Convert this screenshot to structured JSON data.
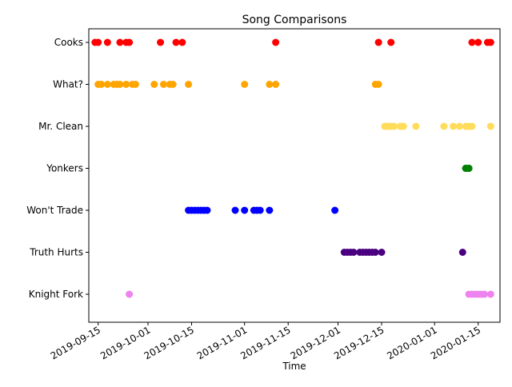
{
  "chart_data": {
    "type": "scatter",
    "title": "Song Comparisons",
    "xlabel": "Time",
    "ylabel": "",
    "x_axis": {
      "type": "date",
      "range": [
        "2019-09-12",
        "2020-01-22"
      ],
      "ticks": [
        "2019-09-15",
        "2019-10-01",
        "2019-10-15",
        "2019-11-01",
        "2019-11-15",
        "2019-12-01",
        "2019-12-15",
        "2020-01-01",
        "2020-01-15"
      ]
    },
    "categories": [
      "Knight Fork",
      "Truth Hurts",
      "Yonkers",
      "Mr. Clean",
      "What?",
      "Cooks",
      "Won't Trade"
    ],
    "y_order_top_to_bottom": [
      "Cooks",
      "What?",
      "Mr. Clean",
      "Yonkers",
      "Won't Trade",
      "Truth Hurts",
      "Knight Fork"
    ],
    "grid": false,
    "legend": "none",
    "series": [
      {
        "category": "Cooks",
        "color": "#ff0000",
        "x": [
          "2019-09-14",
          "2019-09-15",
          "2019-09-18",
          "2019-09-22",
          "2019-09-24",
          "2019-09-25",
          "2019-10-05",
          "2019-10-10",
          "2019-10-12",
          "2019-11-11",
          "2019-12-14",
          "2019-12-18",
          "2020-01-13",
          "2020-01-15",
          "2020-01-18",
          "2020-01-19"
        ]
      },
      {
        "category": "What?",
        "color": "#ffa500",
        "x": [
          "2019-09-15",
          "2019-09-16",
          "2019-09-18",
          "2019-09-20",
          "2019-09-21",
          "2019-09-22",
          "2019-09-24",
          "2019-09-26",
          "2019-09-27",
          "2019-10-03",
          "2019-10-06",
          "2019-10-08",
          "2019-10-09",
          "2019-10-14",
          "2019-11-01",
          "2019-11-09",
          "2019-11-11",
          "2019-12-13",
          "2019-12-14"
        ]
      },
      {
        "category": "Mr. Clean",
        "color": "#ffdc5a",
        "x": [
          "2019-12-16",
          "2019-12-17",
          "2019-12-18",
          "2019-12-19",
          "2019-12-21",
          "2019-12-22",
          "2019-12-26",
          "2020-01-04",
          "2020-01-07",
          "2020-01-09",
          "2020-01-11",
          "2020-01-12",
          "2020-01-13",
          "2020-01-19"
        ]
      },
      {
        "category": "Yonkers",
        "color": "#008000",
        "x": [
          "2020-01-11",
          "2020-01-11",
          "2020-01-12",
          "2020-01-12",
          "2020-01-12"
        ]
      },
      {
        "category": "Won't Trade",
        "color": "#0000ff",
        "x": [
          "2019-10-14",
          "2019-10-15",
          "2019-10-16",
          "2019-10-17",
          "2019-10-18",
          "2019-10-19",
          "2019-10-20",
          "2019-10-29",
          "2019-11-01",
          "2019-11-04",
          "2019-11-05",
          "2019-11-06",
          "2019-11-09",
          "2019-11-30"
        ]
      },
      {
        "category": "Truth Hurts",
        "color": "#4b0082",
        "x": [
          "2019-12-03",
          "2019-12-04",
          "2019-12-05",
          "2019-12-06",
          "2019-12-08",
          "2019-12-09",
          "2019-12-10",
          "2019-12-11",
          "2019-12-12",
          "2019-12-13",
          "2019-12-15",
          "2020-01-10"
        ]
      },
      {
        "category": "Knight Fork",
        "color": "#ee82ee",
        "x": [
          "2019-09-25",
          "2020-01-12",
          "2020-01-13",
          "2020-01-14",
          "2020-01-15",
          "2020-01-16",
          "2020-01-17",
          "2020-01-19"
        ]
      }
    ]
  }
}
